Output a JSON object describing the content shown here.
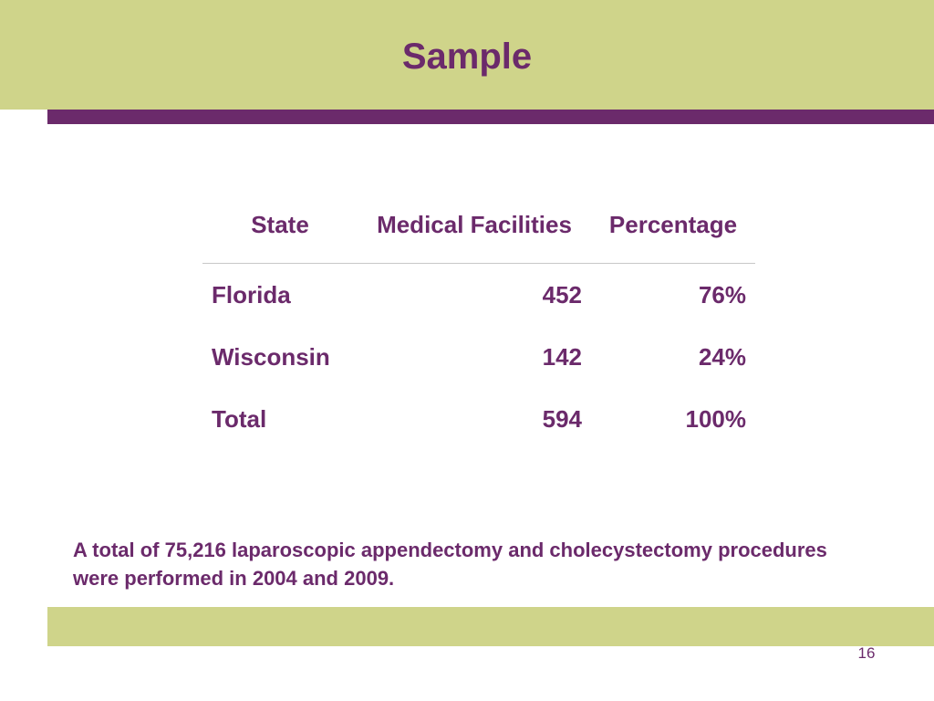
{
  "slide": {
    "title": "Sample",
    "page_number": "16"
  },
  "table": {
    "headers": [
      "State",
      "Medical Facilities",
      "Percentage"
    ],
    "rows": [
      {
        "state": "Florida",
        "facilities": "452",
        "percentage": "76%"
      },
      {
        "state": "Wisconsin",
        "facilities": "142",
        "percentage": "24%"
      },
      {
        "state": "Total",
        "facilities": "594",
        "percentage": "100%"
      }
    ]
  },
  "note": "A total of 75,216 laparoscopic appendectomy and cholecystectomy procedures were performed in 2004 and 2009.",
  "colors": {
    "header_band": "#cfd48a",
    "accent_purple": "#6b2a6b",
    "background": "#ffffff"
  }
}
